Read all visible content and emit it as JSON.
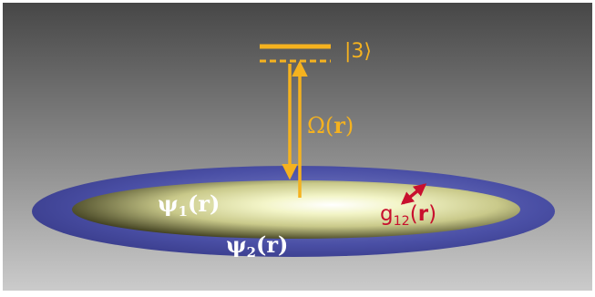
{
  "diagram": {
    "level_label": "|3⟩",
    "coupling_label": {
      "symbol": "Ω(",
      "arg": "r",
      "close": ")"
    },
    "psi1": {
      "symbol": "ψ",
      "sub": "1",
      "open": "(",
      "arg": "r",
      "close": ")"
    },
    "psi2": {
      "symbol": "ψ",
      "sub": "2",
      "open": "(",
      "arg": "r",
      "close": ")"
    },
    "interaction": {
      "symbol": "g",
      "sub": "12",
      "open": "(",
      "arg": "r",
      "close": ")"
    }
  },
  "colors": {
    "beam": "#f5b21f",
    "interaction": "#c8102e",
    "outer_cloud": "#4a4fa5",
    "inner_cloud": "#eaeca6",
    "background_top": "#4a4a4a",
    "background_bottom": "#c9c9c9"
  }
}
